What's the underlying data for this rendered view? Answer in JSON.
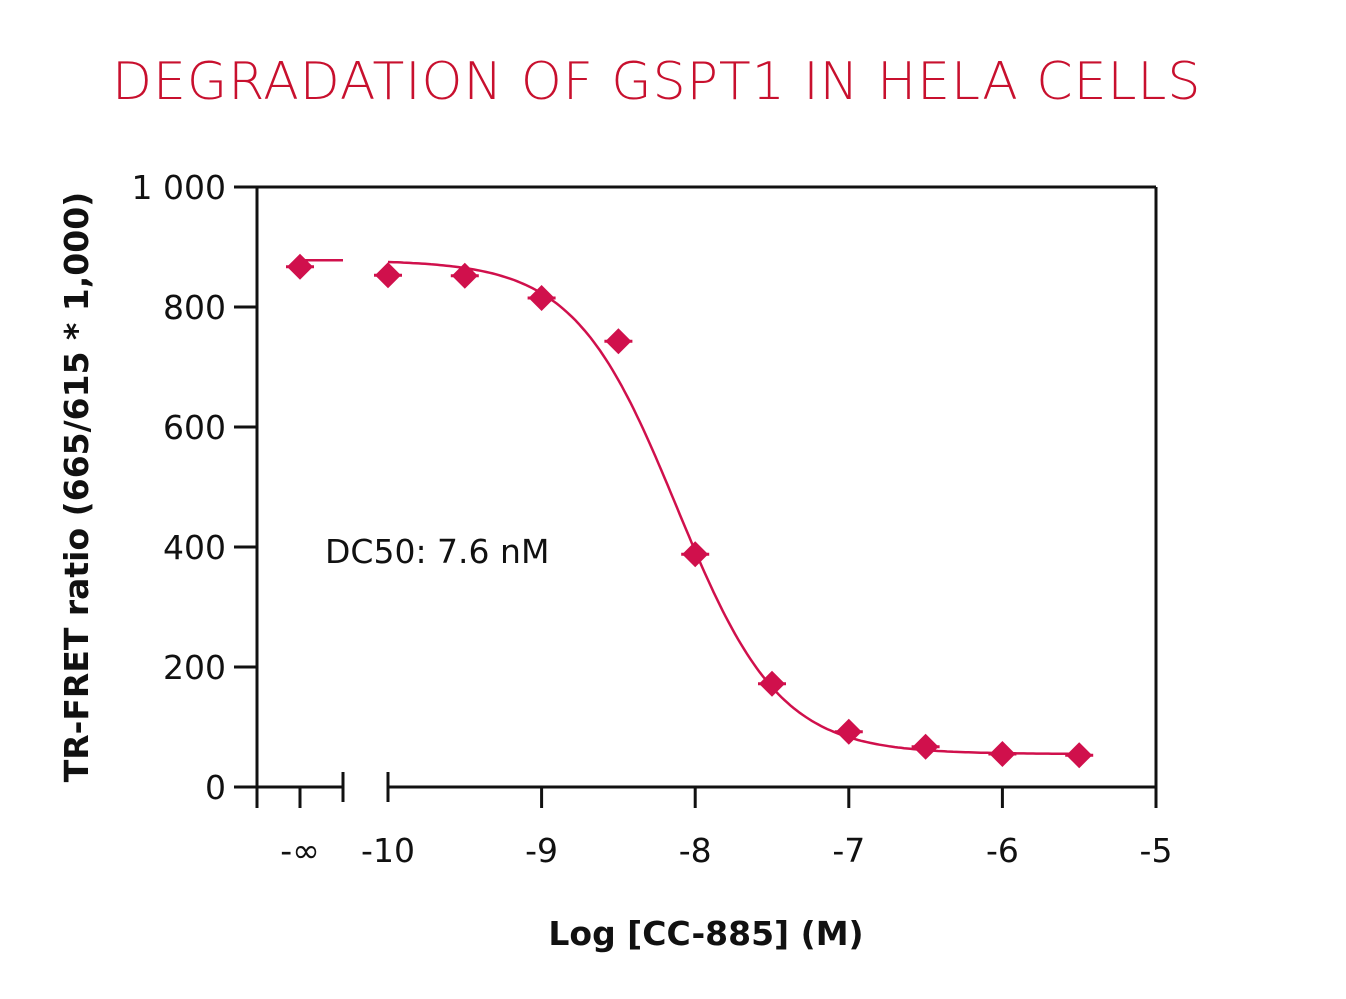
{
  "chart_data": {
    "type": "scatter",
    "title": "DEGRADATION OF GSPT1 IN HELA CELLS",
    "xlabel": "Log [CC-885] (M)",
    "ylabel": "TR-FRET ratio (665/615 * 1,000)",
    "xlim": [
      -10.75,
      -5
    ],
    "ylim": [
      0,
      1000
    ],
    "x_ticks": [
      -10,
      -9,
      -8,
      -7,
      -6,
      -5
    ],
    "x_tick_labels": [
      "-10",
      "-9",
      "-8",
      "-7",
      "-6",
      "-5"
    ],
    "x_break_label": "-∞",
    "y_ticks": [
      0,
      200,
      400,
      600,
      800,
      1000
    ],
    "y_tick_labels": [
      "0",
      "200",
      "400",
      "600",
      "800",
      "1 000"
    ],
    "annotation": "DC50: 7.6 nM",
    "color": "#d0104c",
    "marker": "diamond",
    "points": [
      {
        "x": "-∞",
        "y": 867
      },
      {
        "x": -10,
        "y": 853
      },
      {
        "x": -9.5,
        "y": 852
      },
      {
        "x": -9,
        "y": 815
      },
      {
        "x": -8.5,
        "y": 743
      },
      {
        "x": -8,
        "y": 388
      },
      {
        "x": -7.5,
        "y": 172
      },
      {
        "x": -7,
        "y": 92
      },
      {
        "x": -6.5,
        "y": 67
      },
      {
        "x": -6,
        "y": 55
      },
      {
        "x": -5.5,
        "y": 53
      }
    ],
    "fit": {
      "model": "4PL",
      "top": 878,
      "bottom": 55,
      "logDC50": -8.12,
      "hill": 1.3
    }
  }
}
